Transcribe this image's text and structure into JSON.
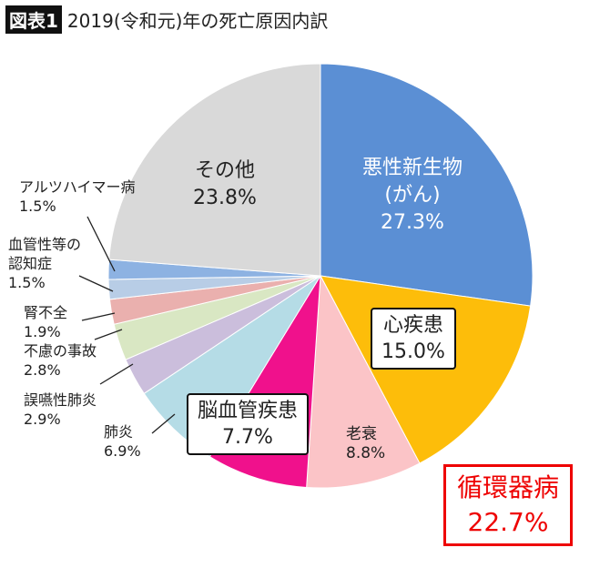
{
  "title_badge": "図表1",
  "title": "2019(令和元)年の死亡原因内訳",
  "chart_data": {
    "type": "pie",
    "title": "2019(令和元)年の死亡原因内訳",
    "start": "top",
    "direction": "clockwise",
    "slices": [
      {
        "label": "悪性新生物(がん)",
        "value": 27.3,
        "value_label": "27.3%",
        "color": "#5b8fd4"
      },
      {
        "label": "心疾患",
        "value": 15.0,
        "value_label": "15.0%",
        "color": "#fdbd0a"
      },
      {
        "label": "老衰",
        "value": 8.8,
        "value_label": "8.8%",
        "color": "#fbc4c7"
      },
      {
        "label": "脳血管疾患",
        "value": 7.7,
        "value_label": "7.7%",
        "color": "#f0118c"
      },
      {
        "label": "肺炎",
        "value": 6.9,
        "value_label": "6.9%",
        "color": "#b5dce6"
      },
      {
        "label": "誤嚥性肺炎",
        "value": 2.9,
        "value_label": "2.9%",
        "color": "#cbbedc"
      },
      {
        "label": "不慮の事故",
        "value": 2.8,
        "value_label": "2.8%",
        "color": "#d9e7c3"
      },
      {
        "label": "腎不全",
        "value": 1.9,
        "value_label": "1.9%",
        "color": "#eab0ae"
      },
      {
        "label": "血管性等の認知症",
        "value": 1.5,
        "value_label": "1.5%",
        "color": "#b8cde6"
      },
      {
        "label": "アルツハイマー病",
        "value": 1.5,
        "value_label": "1.5%",
        "color": "#8db2e2"
      },
      {
        "label": "その他",
        "value": 23.8,
        "value_label": "23.8%",
        "color": "#d9d9d9"
      }
    ],
    "annotation": {
      "label": "循環器病",
      "value_label": "22.7%",
      "color": "#e60000"
    }
  },
  "labels": {
    "cancer1": "悪性新生物",
    "cancer2": "(がん)",
    "heart": "心疾患",
    "senility": "老衰",
    "stroke": "脳血管疾患",
    "pneumonia": "肺炎",
    "aspiration": "誤嚥性肺炎",
    "accident": "不慮の事故",
    "kidney": "腎不全",
    "dementia1": "血管性等の",
    "dementia2": "認知症",
    "alzheimer": "アルツハイマー病",
    "other": "その他"
  }
}
